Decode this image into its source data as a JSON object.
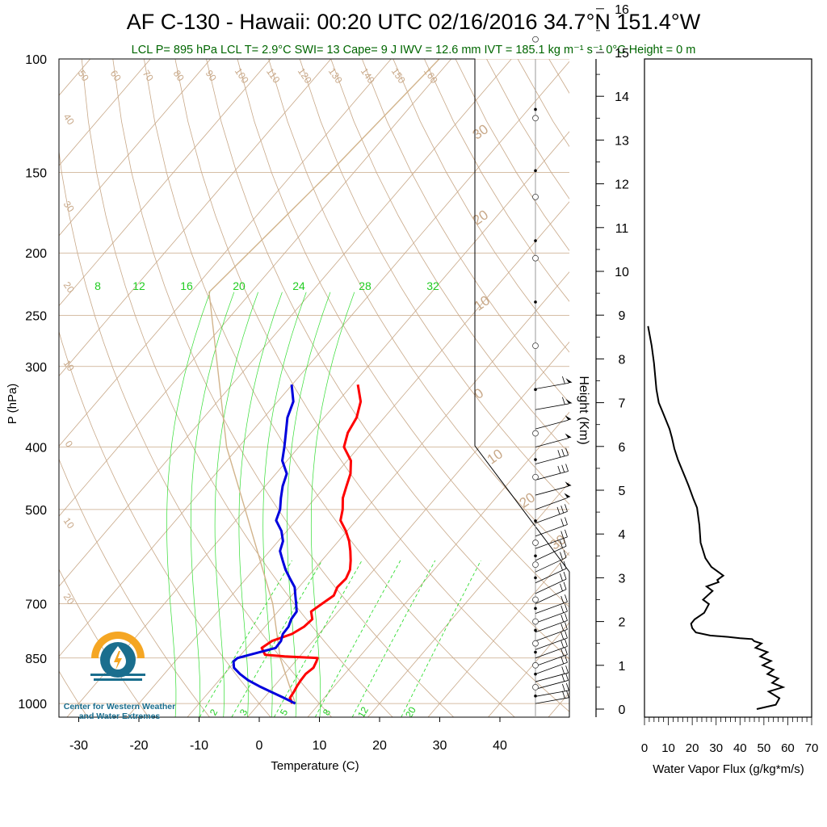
{
  "title": "AF C-130 - Hawaii: 00:20 UTC 02/16/2016  34.7°N 151.4°W",
  "subtitle": "LCL P= 895 hPa  LCL T= 2.9°C  SWI= 13  Cape= 9 J  IWV = 12.6 mm  IVT = 185.1 kg m⁻¹ s⁻¹  0°C Height = 0 m",
  "logo_text": "Center for Western Weather and Water Extremes",
  "colors": {
    "temperature": "#ff0000",
    "dewpoint": "#0000dd",
    "isotherm": "#c8a888",
    "mixing_ratio": "#33dd33",
    "parcel": "#d2b48c",
    "subtitle": "#006600",
    "logo_orange": "#f5a623",
    "logo_teal": "#1a6e8e"
  },
  "chart_data": [
    {
      "type": "line",
      "subtype": "skew-t",
      "xlabel": "Temperature (C)",
      "ylabel": "P (hPa)",
      "xticks": [
        "-30",
        "-20",
        "-10",
        "0",
        "10",
        "20",
        "30",
        "40"
      ],
      "yticks": [
        "100",
        "150",
        "200",
        "250",
        "300",
        "400",
        "500",
        "700",
        "850",
        "1000"
      ],
      "xlim": [
        -33,
        50
      ],
      "ylim": [
        1050,
        100
      ],
      "y_scale": "log",
      "isotherm_labels": [
        "50",
        "60",
        "70",
        "80",
        "90",
        "100",
        "110",
        "120",
        "130",
        "140",
        "150",
        "160",
        "40",
        "30",
        "20",
        "10",
        "0",
        "10",
        "20"
      ],
      "dry_adiabat_labels": [
        "30",
        "20",
        "10",
        "0",
        "10",
        "20",
        "30"
      ],
      "mixing_ratio_labels_top": [
        "8",
        "12",
        "16",
        "20",
        "24",
        "28",
        "32"
      ],
      "mixing_ratio_labels_bottom": [
        "2",
        "3",
        "5",
        "8",
        "12",
        "20"
      ],
      "series": [
        {
          "role": "temperature",
          "p": [
            1000,
            980,
            960,
            940,
            920,
            900,
            880,
            860,
            850,
            845,
            840,
            820,
            800,
            780,
            760,
            740,
            720,
            700,
            680,
            660,
            640,
            620,
            600,
            580,
            560,
            540,
            520,
            500,
            480,
            460,
            440,
            420,
            400,
            380,
            360,
            340,
            320
          ],
          "t": [
            5.5,
            4.3,
            4.1,
            3.8,
            3.6,
            3.5,
            3.9,
            3.5,
            3.2,
            -2.5,
            -6.0,
            -7.5,
            -6.8,
            -4.5,
            -3.5,
            -3.2,
            -4.5,
            -3.8,
            -3.0,
            -3.6,
            -3.4,
            -4.0,
            -5.2,
            -6.6,
            -8.2,
            -10.2,
            -12.6,
            -13.8,
            -15.4,
            -16.5,
            -17.6,
            -19.4,
            -22.5,
            -23.9,
            -24.6,
            -26.2,
            -29.1
          ]
        },
        {
          "role": "dewpoint",
          "p": [
            1000,
            980,
            960,
            940,
            920,
            900,
            880,
            860,
            850,
            840,
            820,
            800,
            780,
            760,
            740,
            720,
            700,
            680,
            660,
            640,
            620,
            600,
            580,
            560,
            540,
            520,
            500,
            480,
            460,
            440,
            420,
            400,
            380,
            360,
            340,
            320
          ],
          "td": [
            6.0,
            3.3,
            0.4,
            -2.5,
            -5.2,
            -7.4,
            -9.3,
            -10.3,
            -10.1,
            -8.5,
            -5.2,
            -5.3,
            -6.0,
            -6.1,
            -6.7,
            -6.9,
            -8.1,
            -9.4,
            -10.7,
            -12.7,
            -14.7,
            -16.5,
            -18.3,
            -19.2,
            -20.9,
            -23.3,
            -24.2,
            -25.7,
            -27.1,
            -28.2,
            -30.8,
            -32.4,
            -34.2,
            -36.1,
            -37.4,
            -40.1
          ]
        },
        {
          "role": "parcel",
          "p": [
            1000,
            850,
            700,
            500,
            400,
            300,
            230,
            200,
            150,
            100
          ],
          "t": [
            6.0,
            -3.0,
            -12.0,
            -30.0,
            -42.0,
            -55.0,
            -67.0,
            -66.0,
            -64.0,
            -62.0
          ]
        }
      ],
      "wind_barbs": {
        "p": [
          1000,
          975,
          950,
          925,
          900,
          875,
          850,
          825,
          800,
          775,
          750,
          725,
          700,
          675,
          650,
          625,
          600,
          575,
          550,
          525,
          500,
          475,
          450,
          425,
          400,
          375,
          350,
          325
        ],
        "direction_deg": [
          260,
          260,
          255,
          255,
          250,
          250,
          250,
          250,
          250,
          250,
          250,
          250,
          245,
          245,
          245,
          245,
          245,
          250,
          250,
          250,
          250,
          255,
          255,
          255,
          255,
          255,
          260,
          260
        ],
        "speed_kt": [
          20,
          20,
          20,
          20,
          20,
          20,
          20,
          20,
          20,
          20,
          20,
          20,
          20,
          20,
          20,
          25,
          25,
          25,
          25,
          30,
          50,
          50,
          35,
          35,
          50,
          50,
          60,
          60
        ]
      },
      "height_markers_km": [
        0.3,
        0.5,
        0.8,
        1.0,
        1.3,
        1.5,
        1.8,
        2.0,
        2.3,
        2.5,
        3.0,
        3.3,
        3.5,
        3.8,
        4.3,
        5.3,
        5.7,
        6.3,
        7.3,
        8.3,
        9.3,
        10.3,
        10.7,
        11.7,
        12.3,
        13.5,
        13.7,
        15.3,
        16.3
      ]
    },
    {
      "type": "line",
      "xlabel": "Water Vapor Flux (g/kg*m/s)",
      "ylabel": "Height (Km)",
      "xticks": [
        "0",
        "10",
        "20",
        "30",
        "40",
        "50",
        "60",
        "70"
      ],
      "yticks": [
        "0",
        "1",
        "2",
        "3",
        "4",
        "5",
        "6",
        "7",
        "8",
        "9",
        "10",
        "11",
        "12",
        "13",
        "14",
        "15",
        "16"
      ],
      "xlim": [
        0,
        70
      ],
      "ylim": [
        -0.2,
        16.4
      ],
      "series": [
        {
          "x": [
            47.0,
            55.0,
            56.5,
            52.0,
            58.0,
            53.5,
            56.0,
            51.5,
            54.0,
            49.5,
            53.0,
            48.5,
            51.5,
            46.5,
            49.0,
            46.0,
            45.0,
            40.0,
            35.0,
            27.5,
            21.5,
            20.0,
            19.5,
            21.0,
            25.0,
            27.0,
            24.5,
            28.5,
            26.0,
            31.0,
            30.5,
            33.0,
            28.0,
            25.5,
            23.5,
            23.0,
            22.0,
            20.5,
            18.5,
            17.0,
            15.5,
            14.0,
            12.5,
            11.5,
            10.5,
            9.0,
            7.5,
            6.0,
            5.0,
            4.5,
            4.0,
            3.0,
            1.5
          ],
          "y": [
            0.0,
            0.1,
            0.25,
            0.4,
            0.5,
            0.6,
            0.7,
            0.8,
            0.9,
            1.0,
            1.1,
            1.2,
            1.3,
            1.4,
            1.5,
            1.55,
            1.6,
            1.62,
            1.65,
            1.68,
            1.75,
            1.85,
            1.95,
            2.05,
            2.2,
            2.4,
            2.5,
            2.7,
            2.8,
            2.9,
            2.95,
            3.05,
            3.25,
            3.45,
            3.8,
            4.2,
            4.6,
            4.8,
            5.1,
            5.3,
            5.5,
            5.7,
            5.95,
            6.2,
            6.4,
            6.6,
            6.8,
            7.0,
            7.3,
            7.6,
            7.9,
            8.3,
            8.75
          ]
        }
      ]
    }
  ]
}
